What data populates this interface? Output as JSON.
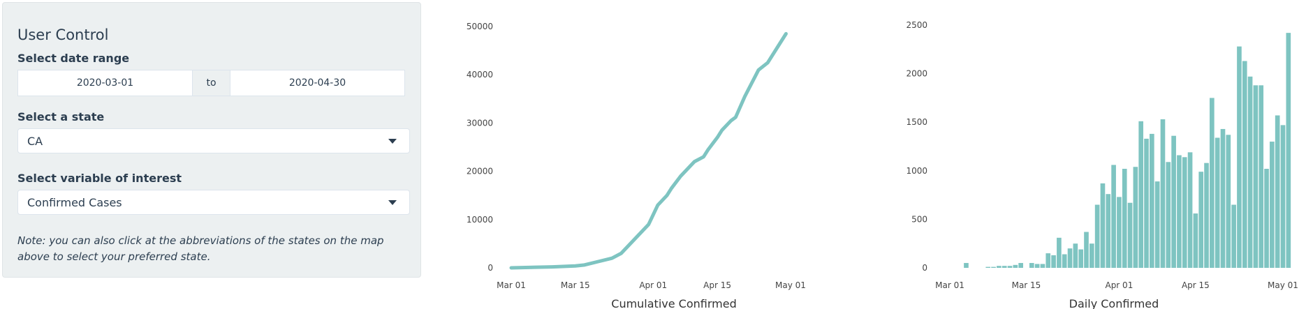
{
  "sidebar": {
    "title": "User Control",
    "date_range_label": "Select date range",
    "date_start": "2020-03-01",
    "date_sep": "to",
    "date_end": "2020-04-30",
    "state_label": "Select a state",
    "state_value": "CA",
    "variable_label": "Select variable of interest",
    "variable_value": "Confirmed Cases",
    "note": "Note: you can also click at the abbreviations of the states on the map above to select your preferred state."
  },
  "colors": {
    "series": "#7ec4c1",
    "panel_bg": "#ecf0f1"
  },
  "chart_data": [
    {
      "type": "line",
      "xlabel": "Cumulative Confirmed",
      "ylabel": "",
      "x_ticks": [
        "Mar 01",
        "Mar 15",
        "Apr 01",
        "Apr 15",
        "May 01"
      ],
      "y_ticks": [
        0,
        10000,
        20000,
        30000,
        40000,
        50000
      ],
      "ylim": [
        0,
        50000
      ],
      "x": [
        "2020-03-01",
        "2020-03-10",
        "2020-03-15",
        "2020-03-17",
        "2020-03-20",
        "2020-03-23",
        "2020-03-25",
        "2020-03-28",
        "2020-03-31",
        "2020-04-02",
        "2020-04-04",
        "2020-04-05",
        "2020-04-07",
        "2020-04-10",
        "2020-04-12",
        "2020-04-13",
        "2020-04-15",
        "2020-04-16",
        "2020-04-18",
        "2020-04-19",
        "2020-04-21",
        "2020-04-24",
        "2020-04-26",
        "2020-04-28",
        "2020-04-29",
        "2020-04-30"
      ],
      "values": [
        0,
        200,
        400,
        600,
        1300,
        2000,
        3000,
        6000,
        9000,
        13000,
        15000,
        16500,
        19000,
        22000,
        23000,
        24500,
        27000,
        28500,
        30500,
        31200,
        35500,
        41000,
        42500,
        45500,
        47000,
        48500
      ],
      "grid": false
    },
    {
      "type": "bar",
      "xlabel": "Daily Confirmed",
      "ylabel": "",
      "x_ticks": [
        "Mar 01",
        "Mar 15",
        "Apr 01",
        "Apr 15",
        "May 01"
      ],
      "y_ticks": [
        0,
        500,
        1000,
        1500,
        2000,
        2500
      ],
      "ylim": [
        0,
        2500
      ],
      "x_start": "2020-03-04",
      "values": [
        50,
        0,
        0,
        0,
        10,
        10,
        20,
        20,
        20,
        30,
        50,
        0,
        50,
        40,
        40,
        150,
        130,
        310,
        140,
        200,
        250,
        190,
        370,
        250,
        650,
        870,
        760,
        1060,
        730,
        1020,
        670,
        1040,
        1510,
        1330,
        1380,
        890,
        1530,
        1090,
        1360,
        1160,
        1140,
        1190,
        560,
        990,
        1080,
        1750,
        1340,
        1430,
        1370,
        650,
        2280,
        2130,
        1970,
        1880,
        1880,
        1020,
        1300,
        1570,
        1470,
        2420
      ]
    }
  ]
}
